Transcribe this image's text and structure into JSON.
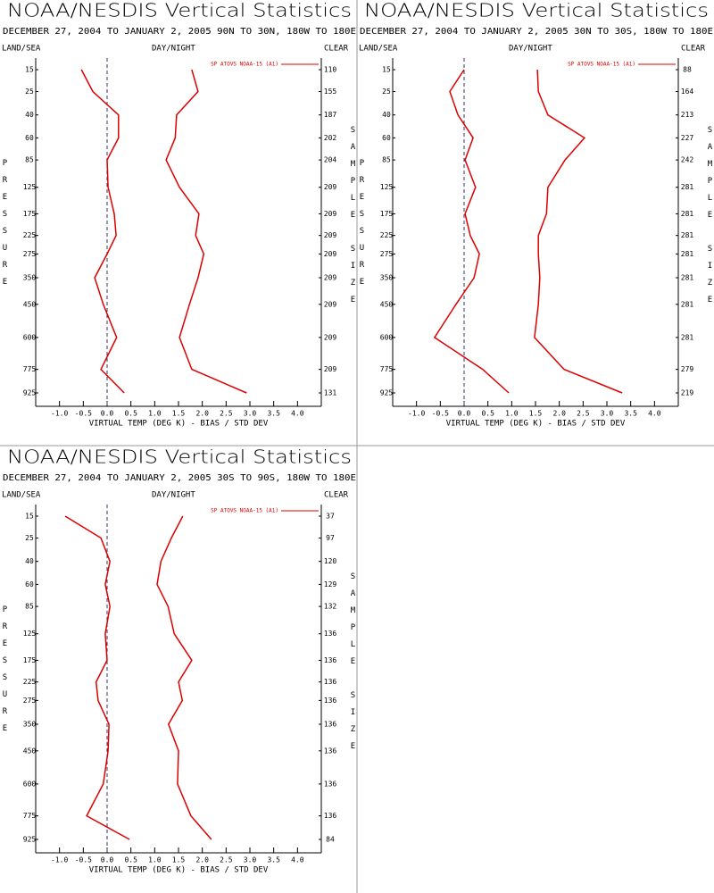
{
  "chart_data": [
    {
      "type": "line",
      "title": "NOAA/NESDIS Vertical Statistics",
      "subtitle": "DECEMBER 27, 2004 TO JANUARY 2, 2005 90N TO 30N, 180W TO 180E",
      "left_header": "LAND/SEA",
      "center_header": "DAY/NIGHT",
      "right_header": "CLEAR",
      "y_label": "PRESSURE",
      "y2_label": "SAMPLE SIZE",
      "x_label": "VIRTUAL TEMP (DEG K) - BIAS / STD DEV",
      "categories": [
        15,
        25,
        40,
        60,
        85,
        125,
        175,
        225,
        275,
        350,
        450,
        600,
        775,
        925
      ],
      "sample_size": [
        110,
        155,
        187,
        202,
        204,
        209,
        209,
        209,
        209,
        209,
        209,
        209,
        209,
        131
      ],
      "series": [
        {
          "name": "SP ATOVS NOAA-15 (A1)",
          "color": "#dd0000",
          "bias": [
            -0.54,
            -0.3,
            0.24,
            0.24,
            0.0,
            0.02,
            0.15,
            0.19,
            0.0,
            -0.26,
            -0.08,
            0.2,
            -0.13,
            0.36
          ],
          "std_dev": [
            1.78,
            1.91,
            1.46,
            1.43,
            1.24,
            1.52,
            1.93,
            1.86,
            2.03,
            1.91,
            1.73,
            1.52,
            1.78,
            2.93
          ]
        }
      ],
      "xlim": [
        -1.5,
        4.5
      ],
      "xticks": [
        {
          "value": -1,
          "label": "-1.0"
        },
        {
          "value": -0.5,
          "label": "-0.5"
        },
        {
          "value": 0,
          "label": "0.0"
        },
        {
          "value": 0.5,
          "label": "0.5"
        },
        {
          "value": 1,
          "label": "1.0"
        },
        {
          "value": 1.5,
          "label": "1.5"
        },
        {
          "value": 2,
          "label": "2.0"
        },
        {
          "value": 2.5,
          "label": "2.5"
        },
        {
          "value": 3,
          "label": "3.0"
        },
        {
          "value": 3.5,
          "label": "3.5"
        },
        {
          "value": 4,
          "label": "4.0"
        }
      ]
    },
    {
      "type": "line",
      "title": "NOAA/NESDIS Vertical Statistics",
      "subtitle": "DECEMBER 27, 2004 TO JANUARY 2, 2005 30N TO 30S, 180W TO 180E",
      "left_header": "LAND/SEA",
      "center_header": "DAY/NIGHT",
      "right_header": "CLEAR",
      "y_label": "PRESSURE",
      "y2_label": "SAMPLE SIZE",
      "x_label": "VIRTUAL TEMP (DEG K) - BIAS / STD DEV",
      "categories": [
        15,
        25,
        40,
        60,
        85,
        125,
        175,
        225,
        275,
        350,
        450,
        600,
        775,
        925
      ],
      "sample_size": [
        88,
        164,
        213,
        227,
        242,
        281,
        281,
        281,
        281,
        281,
        281,
        281,
        279,
        219
      ],
      "series": [
        {
          "name": "SP ATOVS NOAA-15 (A1)",
          "color": "#dd0000",
          "bias": [
            0.0,
            -0.3,
            -0.13,
            0.19,
            0.02,
            0.24,
            0.02,
            0.13,
            0.32,
            0.21,
            -0.17,
            -0.62,
            0.39,
            0.94
          ],
          "std_dev": [
            1.54,
            1.56,
            1.76,
            2.53,
            2.12,
            1.76,
            1.73,
            1.56,
            1.56,
            1.59,
            1.56,
            1.48,
            2.1,
            3.32
          ]
        }
      ],
      "xlim": [
        -1.5,
        4.5
      ],
      "xticks": [
        {
          "value": -1,
          "label": "-1.0"
        },
        {
          "value": -0.5,
          "label": "-0.5"
        },
        {
          "value": 0,
          "label": "0.0"
        },
        {
          "value": 0.5,
          "label": "0.5"
        },
        {
          "value": 1,
          "label": "1.0"
        },
        {
          "value": 1.5,
          "label": "1.5"
        },
        {
          "value": 2,
          "label": "2.0"
        },
        {
          "value": 2.5,
          "label": "2.5"
        },
        {
          "value": 3,
          "label": "3.0"
        },
        {
          "value": 3.5,
          "label": "3.5"
        },
        {
          "value": 4,
          "label": "4.0"
        }
      ]
    },
    {
      "type": "line",
      "title": "NOAA/NESDIS Vertical Statistics",
      "subtitle": "DECEMBER 27, 2004 TO JANUARY 2, 2005 30S TO 90S, 180W TO 180E",
      "left_header": "LAND/SEA",
      "center_header": "DAY/NIGHT",
      "right_header": "CLEAR",
      "y_label": "PRESSURE",
      "y2_label": "SAMPLE SIZE",
      "x_label": "VIRTUAL TEMP (DEG K) - BIAS / STD DEV",
      "categories": [
        15,
        25,
        40,
        60,
        85,
        125,
        175,
        225,
        275,
        350,
        450,
        600,
        775,
        925
      ],
      "sample_size": [
        37,
        97,
        120,
        129,
        132,
        136,
        136,
        136,
        136,
        136,
        136,
        136,
        136,
        84
      ],
      "series": [
        {
          "name": "SP ATOVS NOAA-15 (A1)",
          "color": "#dd0000",
          "bias": [
            -0.88,
            -0.13,
            0.06,
            -0.04,
            0.06,
            -0.04,
            0.0,
            -0.23,
            -0.19,
            0.04,
            0.02,
            -0.08,
            -0.43,
            0.47
          ],
          "std_dev": [
            1.59,
            1.35,
            1.13,
            1.05,
            1.28,
            1.41,
            1.78,
            1.5,
            1.58,
            1.29,
            1.5,
            1.48,
            1.76,
            2.19
          ]
        }
      ],
      "xlim": [
        -1.5,
        4.5
      ],
      "xticks": [
        {
          "value": -1,
          "label": "-1.0"
        },
        {
          "value": -0.5,
          "label": "-0.5"
        },
        {
          "value": 0,
          "label": "0.0"
        },
        {
          "value": 0.5,
          "label": "0.5"
        },
        {
          "value": 1,
          "label": "1.0"
        },
        {
          "value": 1.5,
          "label": "1.5"
        },
        {
          "value": 2,
          "label": "2.0"
        },
        {
          "value": 2.5,
          "label": "2.5"
        },
        {
          "value": 3,
          "label": "3.0"
        },
        {
          "value": 3.5,
          "label": "3.5"
        },
        {
          "value": 4,
          "label": "4.0"
        }
      ]
    }
  ]
}
